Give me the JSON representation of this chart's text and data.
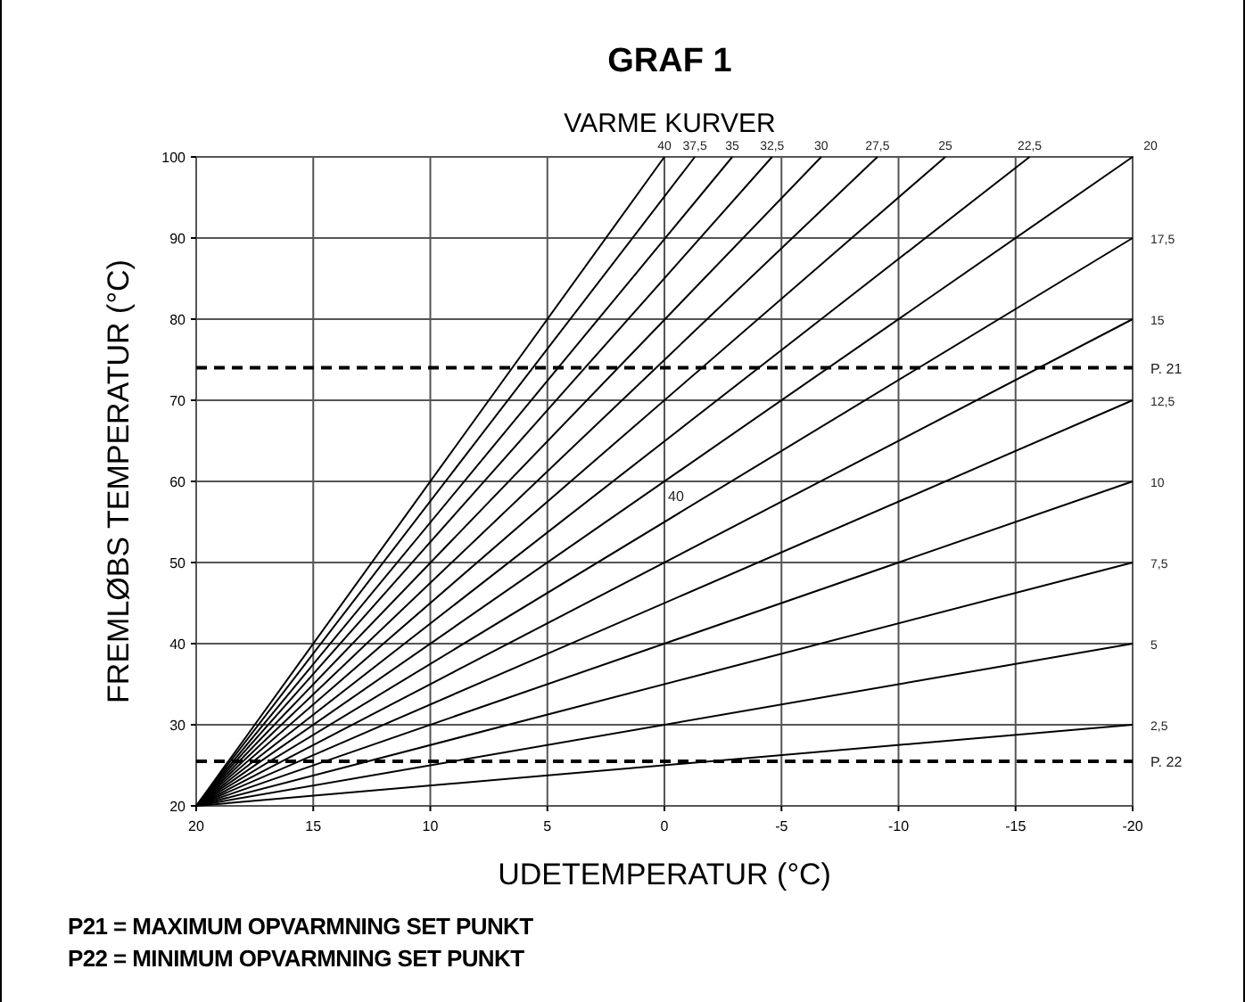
{
  "chart_data": {
    "type": "line",
    "title": "GRAF 1",
    "subtitle": "VARME KURVER",
    "xlabel": "UDETEMPERATUR (°C)",
    "ylabel": "FREMLØBS TEMPERATUR (°C)",
    "xlim": [
      20,
      -20
    ],
    "xticks": [
      20,
      15,
      10,
      5,
      0,
      -5,
      -10,
      -15,
      -20
    ],
    "ylim": [
      20,
      100
    ],
    "yticks": [
      20,
      30,
      40,
      50,
      60,
      70,
      80,
      90,
      100
    ],
    "grid": true,
    "marker": "none",
    "line_style": "solid",
    "series": [
      {
        "name": "40",
        "color": "#000000",
        "x": [
          20,
          0
        ],
        "values": [
          20,
          100
        ]
      },
      {
        "name": "37,5",
        "color": "#000000",
        "x": [
          20,
          -1.3
        ],
        "values": [
          20,
          100
        ]
      },
      {
        "name": "35",
        "color": "#000000",
        "x": [
          20,
          -2.9
        ],
        "values": [
          20,
          100
        ]
      },
      {
        "name": "32,5",
        "color": "#000000",
        "x": [
          20,
          -4.6
        ],
        "values": [
          20,
          100
        ]
      },
      {
        "name": "30",
        "color": "#000000",
        "x": [
          20,
          -6.7
        ],
        "values": [
          20,
          100
        ]
      },
      {
        "name": "27,5",
        "color": "#000000",
        "x": [
          20,
          -9.1
        ],
        "values": [
          20,
          100
        ]
      },
      {
        "name": "25",
        "color": "#000000",
        "x": [
          20,
          -12
        ],
        "values": [
          20,
          100
        ]
      },
      {
        "name": "22,5",
        "color": "#000000",
        "x": [
          20,
          -15.6
        ],
        "values": [
          20,
          100
        ]
      },
      {
        "name": "20",
        "color": "#000000",
        "x": [
          20,
          -20
        ],
        "values": [
          20,
          100
        ]
      },
      {
        "name": "17,5",
        "color": "#000000",
        "x": [
          20,
          -20
        ],
        "values": [
          20,
          90
        ]
      },
      {
        "name": "15",
        "color": "#000000",
        "x": [
          20,
          -20
        ],
        "values": [
          20,
          80
        ]
      },
      {
        "name": "12,5",
        "color": "#000000",
        "x": [
          20,
          -20
        ],
        "values": [
          20,
          70
        ]
      },
      {
        "name": "10",
        "color": "#000000",
        "x": [
          20,
          -20
        ],
        "values": [
          20,
          60
        ]
      },
      {
        "name": "7,5",
        "color": "#000000",
        "x": [
          20,
          -20
        ],
        "values": [
          20,
          50
        ]
      },
      {
        "name": "5",
        "color": "#000000",
        "x": [
          20,
          -20
        ],
        "values": [
          20,
          40
        ]
      },
      {
        "name": "2,5",
        "color": "#000000",
        "x": [
          20,
          -20
        ],
        "values": [
          20,
          30
        ]
      }
    ],
    "ref_lines": [
      {
        "axis": "y",
        "value": 74,
        "label": "P. 21",
        "color": "#000000",
        "line_style": "dashed"
      },
      {
        "axis": "y",
        "value": 25.5,
        "label": "P. 22",
        "color": "#000000",
        "line_style": "dashed"
      }
    ],
    "annotations": [
      "40",
      "P21 = MAXIMUM OPVARMNING SET PUNKT",
      "P22 = MINIMUM OPVARMNING SET PUNKT"
    ]
  }
}
